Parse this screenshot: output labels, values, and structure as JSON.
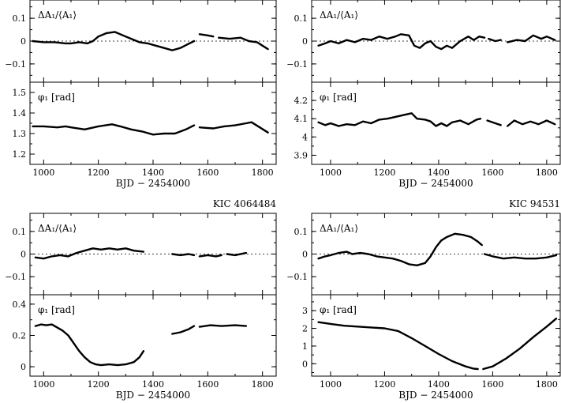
{
  "chart_data": [
    {
      "type": "line",
      "title": "",
      "xlabel": "BJD − 2454000",
      "xlim": [
        950,
        1850
      ],
      "xticks": [
        1000,
        1200,
        1400,
        1600,
        1800
      ],
      "xtick_labels": [
        "1000",
        "1200",
        "1400",
        "1600",
        "1800"
      ],
      "top": {
        "ylabel": "ΔA₁/⟨A₁⟩",
        "ylim": [
          -0.18,
          0.18
        ],
        "yticks": [
          -0.1,
          0,
          0.1
        ],
        "ytick_labels": [
          "−0.1",
          "0",
          "0.1"
        ],
        "segments": [
          {
            "x": [
              960,
              1000,
              1040,
              1080,
              1100,
              1130,
              1160,
              1180,
              1200,
              1230,
              1260,
              1290,
              1320,
              1350,
              1380,
              1410,
              1440,
              1470,
              1500,
              1525,
              1550
            ],
            "y": [
              0.0,
              -0.005,
              -0.005,
              -0.01,
              -0.01,
              -0.005,
              -0.01,
              0.0,
              0.02,
              0.035,
              0.04,
              0.025,
              0.01,
              -0.005,
              -0.01,
              -0.02,
              -0.03,
              -0.04,
              -0.03,
              -0.015,
              0.0
            ]
          },
          {
            "x": [
              1570,
              1600,
              1620
            ],
            "y": [
              0.03,
              0.025,
              0.02
            ]
          },
          {
            "x": [
              1640,
              1680,
              1720,
              1750,
              1780,
              1800,
              1820
            ],
            "y": [
              0.015,
              0.01,
              0.015,
              0.0,
              -0.005,
              -0.02,
              -0.035
            ]
          }
        ]
      },
      "bottom": {
        "ylabel": "φ₁ [rad]",
        "ylim": [
          1.15,
          1.55
        ],
        "yticks": [
          1.2,
          1.3,
          1.4,
          1.5
        ],
        "ytick_labels": [
          "1.2",
          "1.3",
          "1.4",
          "1.5"
        ],
        "segments": [
          {
            "x": [
              960,
              1000,
              1050,
              1080,
              1100,
              1150,
              1200,
              1250,
              1280,
              1320,
              1360,
              1400,
              1440,
              1480,
              1520,
              1550
            ],
            "y": [
              1.335,
              1.335,
              1.33,
              1.335,
              1.33,
              1.32,
              1.335,
              1.345,
              1.335,
              1.32,
              1.31,
              1.295,
              1.3,
              1.3,
              1.32,
              1.34
            ]
          },
          {
            "x": [
              1570,
              1620,
              1660,
              1700,
              1740,
              1760,
              1790,
              1820
            ],
            "y": [
              1.33,
              1.325,
              1.335,
              1.34,
              1.35,
              1.355,
              1.33,
              1.305
            ]
          }
        ]
      }
    },
    {
      "type": "line",
      "title": "",
      "xlabel": "BJD − 2454000",
      "xlim": [
        930,
        1850
      ],
      "xticks": [
        1000,
        1200,
        1400,
        1600,
        1800
      ],
      "xtick_labels": [
        "1000",
        "1200",
        "1400",
        "1600",
        "1800"
      ],
      "top": {
        "ylabel": "ΔA₁/⟨A₁⟩",
        "ylim": [
          -0.18,
          0.18
        ],
        "yticks": [
          -0.1,
          0,
          0.1
        ],
        "ytick_labels": [
          "−0.1",
          "0",
          "0.1"
        ],
        "segments": [
          {
            "x": [
              955,
              980,
              1000,
              1030,
              1060,
              1090,
              1120,
              1150,
              1180,
              1210,
              1240,
              1260,
              1290,
              1310,
              1330,
              1350,
              1370,
              1390,
              1410,
              1430,
              1450,
              1480,
              1510,
              1530,
              1550,
              1570
            ],
            "y": [
              -0.02,
              -0.01,
              0.0,
              -0.01,
              0.005,
              -0.005,
              0.01,
              0.005,
              0.02,
              0.01,
              0.02,
              0.03,
              0.025,
              -0.02,
              -0.03,
              -0.01,
              0.0,
              -0.025,
              -0.035,
              -0.02,
              -0.03,
              0.0,
              0.02,
              0.005,
              0.02,
              0.015
            ]
          },
          {
            "x": [
              1585,
              1610,
              1630
            ],
            "y": [
              0.01,
              0.0,
              0.005
            ]
          },
          {
            "x": [
              1655,
              1690,
              1720,
              1750,
              1780,
              1800,
              1830
            ],
            "y": [
              -0.005,
              0.005,
              0.0,
              0.025,
              0.01,
              0.02,
              0.005
            ]
          }
        ]
      },
      "bottom": {
        "ylabel": "φ₁ [rad]",
        "ylim": [
          3.85,
          4.3
        ],
        "yticks": [
          3.9,
          4.0,
          4.1,
          4.2
        ],
        "ytick_labels": [
          "3.9",
          "4",
          "4.1",
          "4.2"
        ],
        "segments": [
          {
            "x": [
              955,
              980,
              1000,
              1030,
              1060,
              1090,
              1120,
              1150,
              1180,
              1210,
              1240,
              1270,
              1300,
              1320,
              1350,
              1370,
              1390,
              1410,
              1430,
              1450,
              1480,
              1510,
              1540,
              1555
            ],
            "y": [
              4.08,
              4.065,
              4.075,
              4.06,
              4.07,
              4.065,
              4.085,
              4.075,
              4.095,
              4.1,
              4.11,
              4.12,
              4.13,
              4.1,
              4.095,
              4.085,
              4.06,
              4.075,
              4.06,
              4.08,
              4.09,
              4.07,
              4.095,
              4.1
            ]
          },
          {
            "x": [
              1580,
              1610,
              1630
            ],
            "y": [
              4.09,
              4.075,
              4.065
            ]
          },
          {
            "x": [
              1655,
              1680,
              1710,
              1740,
              1770,
              1800,
              1830
            ],
            "y": [
              4.06,
              4.09,
              4.07,
              4.085,
              4.07,
              4.09,
              4.07
            ]
          }
        ]
      }
    },
    {
      "type": "line",
      "title": "KIC 4064484",
      "xlabel": "BJD − 2454000",
      "xlim": [
        950,
        1850
      ],
      "xticks": [
        1000,
        1200,
        1400,
        1600,
        1800
      ],
      "xtick_labels": [
        "1000",
        "1200",
        "1400",
        "1600",
        "1800"
      ],
      "top": {
        "ylabel": "ΔA₁/⟨A₁⟩",
        "ylim": [
          -0.18,
          0.18
        ],
        "yticks": [
          -0.1,
          0,
          0.1
        ],
        "ytick_labels": [
          "−0.1",
          "0",
          "0.1"
        ],
        "segments": [
          {
            "x": [
              970,
              1000,
              1030,
              1060,
              1090,
              1120,
              1150,
              1180,
              1210,
              1240,
              1270,
              1300,
              1330,
              1365
            ],
            "y": [
              -0.015,
              -0.02,
              -0.01,
              -0.005,
              -0.01,
              0.005,
              0.015,
              0.025,
              0.02,
              0.025,
              0.02,
              0.025,
              0.015,
              0.01
            ]
          },
          {
            "x": [
              1470,
              1500,
              1530,
              1550
            ],
            "y": [
              0.0,
              -0.005,
              0.0,
              -0.005
            ]
          },
          {
            "x": [
              1570,
              1600,
              1630,
              1650
            ],
            "y": [
              -0.01,
              -0.005,
              -0.01,
              -0.005
            ]
          },
          {
            "x": [
              1670,
              1700,
              1740
            ],
            "y": [
              0.0,
              -0.005,
              0.005
            ]
          }
        ]
      },
      "bottom": {
        "ylabel": "φ₁ [rad]",
        "ylim": [
          -0.06,
          0.46
        ],
        "yticks": [
          0.0,
          0.2,
          0.4
        ],
        "ytick_labels": [
          "0",
          "0.2",
          "0.4"
        ],
        "segments": [
          {
            "x": [
              970,
              990,
              1010,
              1030,
              1050,
              1070,
              1090,
              1110,
              1130,
              1150,
              1170,
              1190,
              1210,
              1240,
              1270,
              1300,
              1330,
              1350,
              1365
            ],
            "y": [
              0.26,
              0.27,
              0.265,
              0.27,
              0.25,
              0.23,
              0.2,
              0.15,
              0.1,
              0.06,
              0.03,
              0.015,
              0.01,
              0.015,
              0.01,
              0.015,
              0.03,
              0.06,
              0.1
            ]
          },
          {
            "x": [
              1470,
              1500,
              1530,
              1550
            ],
            "y": [
              0.21,
              0.22,
              0.24,
              0.26
            ]
          },
          {
            "x": [
              1570,
              1610,
              1650,
              1700,
              1740
            ],
            "y": [
              0.255,
              0.265,
              0.26,
              0.265,
              0.26
            ]
          }
        ]
      }
    },
    {
      "type": "line",
      "title": "KIC 94531",
      "xlabel": "BJD − 2454000",
      "xlim": [
        930,
        1850
      ],
      "xticks": [
        1000,
        1200,
        1400,
        1600,
        1800
      ],
      "xtick_labels": [
        "1000",
        "1200",
        "1400",
        "1600",
        "1800"
      ],
      "top": {
        "ylabel": "ΔA₁/⟨A₁⟩",
        "ylim": [
          -0.18,
          0.18
        ],
        "yticks": [
          -0.1,
          0,
          0.1
        ],
        "ytick_labels": [
          "−0.1",
          "0",
          "0.1"
        ],
        "segments": [
          {
            "x": [
              955,
              980,
              1000,
              1030,
              1060,
              1080,
              1110,
              1140,
              1170,
              1200,
              1230,
              1260,
              1290,
              1320,
              1350,
              1370,
              1390,
              1410,
              1430,
              1460,
              1490,
              1520,
              1545,
              1560
            ],
            "y": [
              -0.02,
              -0.01,
              -0.005,
              0.005,
              0.01,
              0.0,
              0.005,
              0.0,
              -0.01,
              -0.015,
              -0.02,
              -0.03,
              -0.045,
              -0.05,
              -0.04,
              -0.01,
              0.03,
              0.06,
              0.075,
              0.09,
              0.085,
              0.075,
              0.055,
              0.04
            ]
          },
          {
            "x": [
              1570,
              1600,
              1640,
              1680,
              1720,
              1760,
              1800,
              1835
            ],
            "y": [
              0.0,
              -0.01,
              -0.02,
              -0.015,
              -0.02,
              -0.02,
              -0.015,
              -0.005
            ]
          }
        ]
      },
      "bottom": {
        "ylabel": "φ₁ [rad]",
        "ylim": [
          -0.7,
          3.9
        ],
        "yticks": [
          0,
          1,
          2,
          3
        ],
        "ytick_labels": [
          "0",
          "1",
          "2",
          "3"
        ],
        "segments": [
          {
            "x": [
              955,
              1000,
              1050,
              1100,
              1150,
              1200,
              1250,
              1300,
              1350,
              1400,
              1450,
              1500,
              1530,
              1545
            ],
            "y": [
              2.35,
              2.25,
              2.15,
              2.1,
              2.05,
              2.0,
              1.85,
              1.45,
              1.0,
              0.55,
              0.15,
              -0.15,
              -0.28,
              -0.3
            ]
          },
          {
            "x": [
              1565,
              1600,
              1650,
              1700,
              1750,
              1800,
              1835
            ],
            "y": [
              -0.3,
              -0.15,
              0.3,
              0.85,
              1.5,
              2.1,
              2.55
            ]
          }
        ]
      }
    }
  ]
}
